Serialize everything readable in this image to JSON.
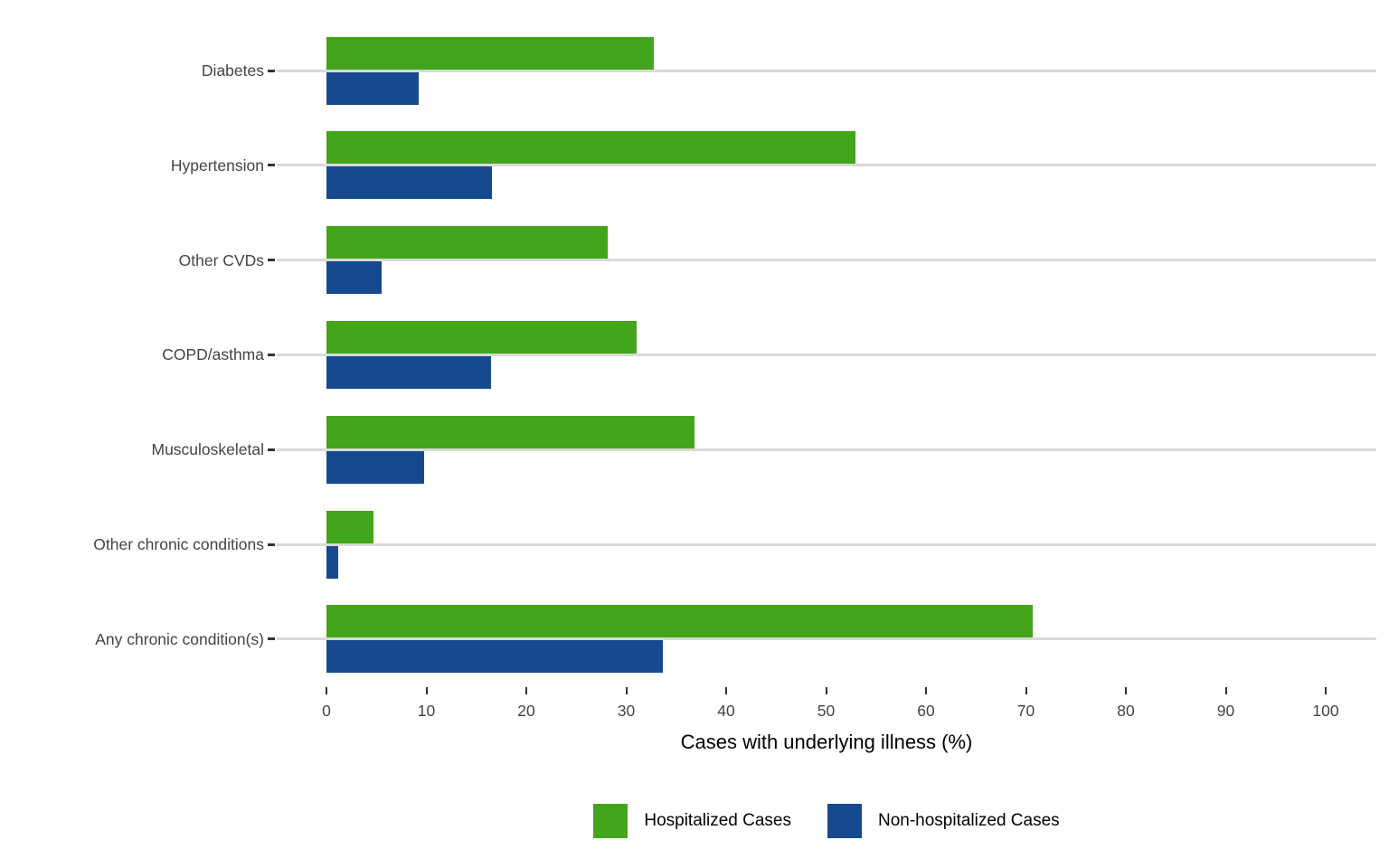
{
  "chart_data": {
    "type": "bar",
    "orientation": "horizontal",
    "title": "",
    "xlabel": "Cases with underlying illness (%)",
    "ylabel": "",
    "categories": [
      "Diabetes",
      "Hypertension",
      "Other CVDs",
      "COPD/asthma",
      "Musculoskeletal",
      "Other chronic conditions",
      "Any chronic condition(s)"
    ],
    "series": [
      {
        "name": "Hospitalized Cases",
        "color": "#43A51B",
        "values": [
          32.8,
          52.9,
          28.1,
          31.0,
          36.8,
          4.7,
          70.7
        ]
      },
      {
        "name": "Non-hospitalized Cases",
        "color": "#17498F",
        "values": [
          9.2,
          16.6,
          5.5,
          16.5,
          9.8,
          1.2,
          33.7
        ]
      }
    ],
    "x_ticks": [
      0,
      10,
      20,
      30,
      40,
      50,
      60,
      70,
      80,
      90,
      100
    ],
    "xlim": [
      0,
      105
    ],
    "grid": "horizontal-major",
    "gridline_color": "#D9D9D9",
    "legend_position": "bottom"
  },
  "legend": {
    "items": [
      {
        "label": "Hospitalized Cases",
        "color": "#43A51B"
      },
      {
        "label": "Non-hospitalized Cases",
        "color": "#17498F"
      }
    ]
  }
}
